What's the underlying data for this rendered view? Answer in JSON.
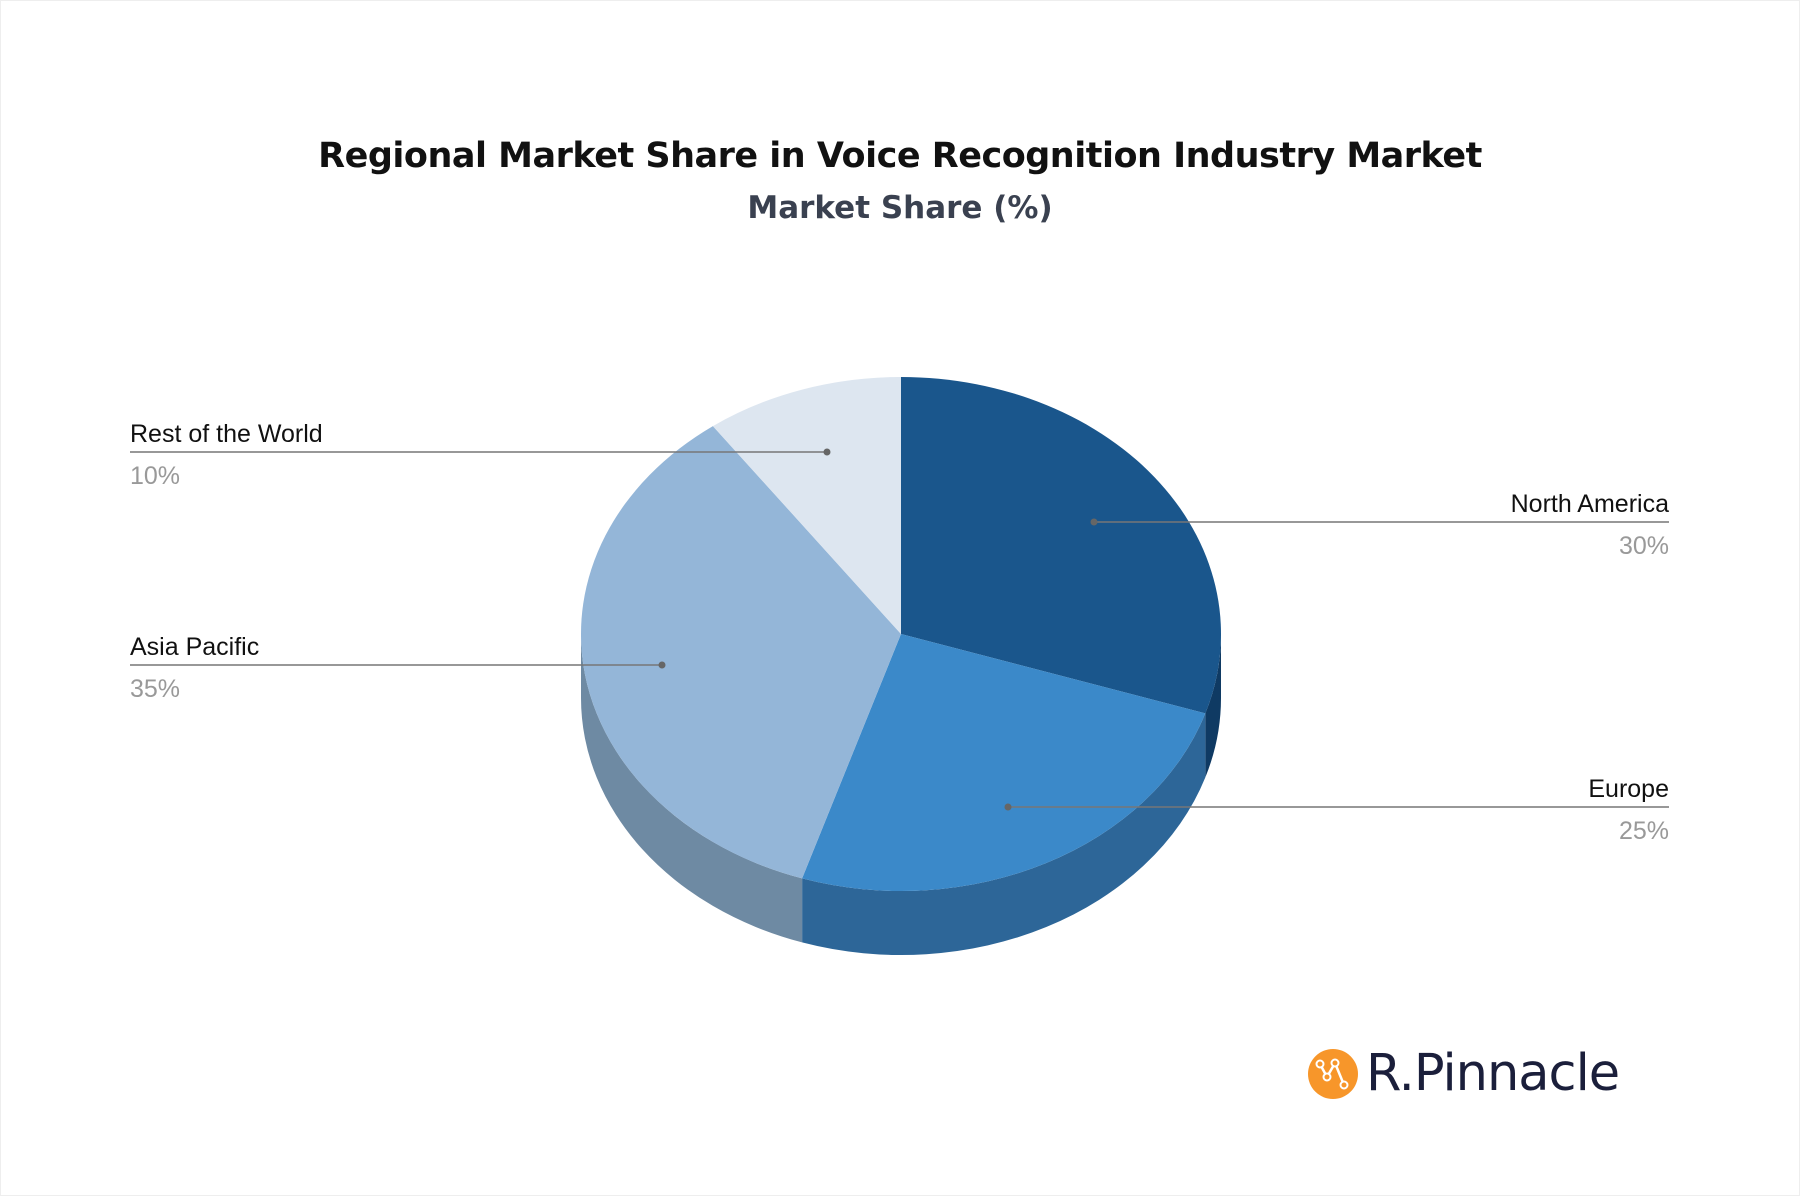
{
  "chart_data": {
    "type": "pie",
    "style": "3d",
    "title": "Regional Market Share in Voice Recognition Industry Market",
    "subtitle": "Market Share (%)",
    "slices": [
      {
        "label": "North America",
        "value": 30,
        "value_label": "30%",
        "color": "#1a568c",
        "side_color": "#0f3a63"
      },
      {
        "label": "Europe",
        "value": 25,
        "value_label": "25%",
        "color": "#3b89c9",
        "side_color": "#2d6698"
      },
      {
        "label": "Asia Pacific",
        "value": 35,
        "value_label": "35%",
        "color": "#94b6d8",
        "side_color": "#6e8aa3"
      },
      {
        "label": "Rest of the World",
        "value": 10,
        "value_label": "10%",
        "color": "#dde6f0",
        "side_color": "#b5bfca"
      }
    ]
  },
  "logo": {
    "text": "R.Pinnacle",
    "icon": "chart-line-icon",
    "color": "#f7962a"
  }
}
